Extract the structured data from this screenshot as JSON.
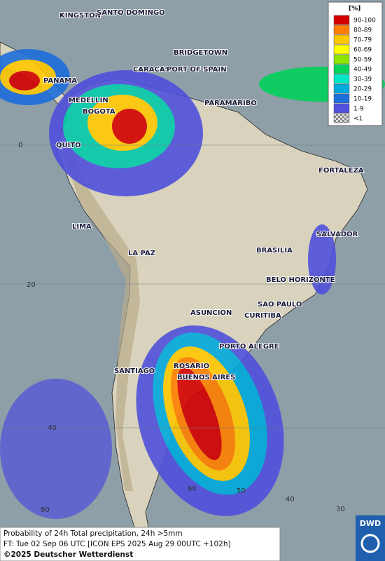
{
  "map": {
    "cities": [
      "KINGSTON",
      "SANTO DOMINGO",
      "BRIDGETOWN",
      "CARACAS",
      "PORT OF SPAIN",
      "PANAMA",
      "MEDELLIN",
      "BOGOTA",
      "PARAMARIBO",
      "QUITO",
      "FORTALEZA",
      "LIMA",
      "SALVADOR",
      "BRASILIA",
      "LA PAZ",
      "BELO HORIZONTE",
      "SAO PAULO",
      "ASUNCION",
      "CURITIBA",
      "PORTO ALEGRE",
      "ROSARIO",
      "BUENOS AIRES",
      "SANTIAGO"
    ],
    "latitude_labels": [
      "0",
      "20",
      "40"
    ],
    "longitude_labels": [
      "90",
      "60",
      "50",
      "40",
      "30"
    ]
  },
  "legend": {
    "unit": "[%]",
    "items": [
      {
        "label": "90-100",
        "color": "#d40000"
      },
      {
        "label": "80-89",
        "color": "#ff7f00"
      },
      {
        "label": "70-79",
        "color": "#ffc800"
      },
      {
        "label": "60-69",
        "color": "#ffff00"
      },
      {
        "label": "50-59",
        "color": "#8ce600"
      },
      {
        "label": "40-49",
        "color": "#00d25a"
      },
      {
        "label": "30-39",
        "color": "#00e6c8"
      },
      {
        "label": "20-29",
        "color": "#00aadc"
      },
      {
        "label": "10-19",
        "color": "#1e6edc"
      },
      {
        "label": "1-9",
        "color": "#5050dc"
      },
      {
        "label": "<1",
        "color": "checker"
      }
    ]
  },
  "footer": {
    "line1": "Probability of 24h Total precipitation, 24h >5mm",
    "line2": "FT: Tue 02 Sep 06 UTC [ICON EPS 2025 Aug 29 00UTC +102h]",
    "copyright": "©2025 Deutscher Wetterdienst",
    "logo": "DWD"
  }
}
